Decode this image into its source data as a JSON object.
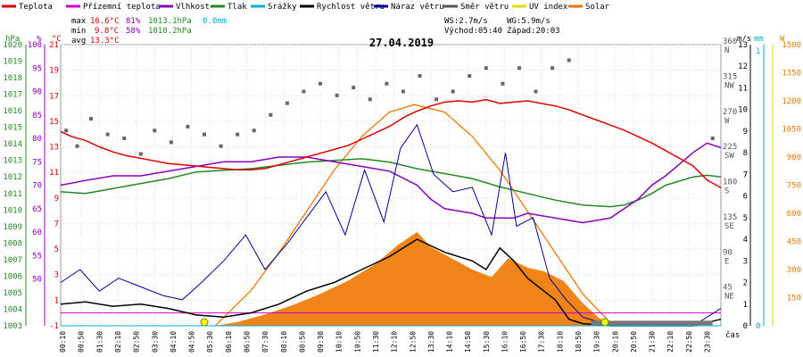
{
  "chart_data": {
    "type": "line",
    "title": "27.04.2019",
    "legend": {
      "placement": "top",
      "items": [
        {
          "name": "Teplota",
          "color": "#dd0000"
        },
        {
          "name": "Přízemní teplota",
          "color": "#cc00cc"
        },
        {
          "name": "Vlhkost",
          "color": "#8800bb"
        },
        {
          "name": "Tlak",
          "color": "#228822"
        },
        {
          "name": "Srážky",
          "color": "#00aadd"
        },
        {
          "name": "Rychlost větru",
          "color": "#000000"
        },
        {
          "name": "Náraz větru",
          "color": "#000099"
        },
        {
          "name": "Směr větru",
          "color": "#555555"
        },
        {
          "name": "UV index",
          "color": "#dddd00"
        },
        {
          "name": "Solar",
          "color": "#ee7700"
        }
      ]
    },
    "stats": {
      "max_label": "max",
      "min_label": "min",
      "avg_label": "avg",
      "max_temp": "16.6°C",
      "max_hum": "81%",
      "max_pres": "1013.1hPa",
      "max_rain": "0.0mm",
      "min_temp": "9.8°C",
      "min_hum": "58%",
      "min_pres": "1010.2hPa",
      "avg_temp": "13.3°C",
      "ws": "WS:2.7m/s",
      "wg": "WG:5.9m/s",
      "sunrise": "Východ:05:40",
      "sunset": "Západ:20:03"
    },
    "axes": {
      "pressure": {
        "unit": "hPa",
        "range": [
          1003,
          1020
        ],
        "ticks": [
          1003,
          1004,
          1005,
          1006,
          1007,
          1008,
          1009,
          1010,
          1011,
          1012,
          1013,
          1014,
          1015,
          1016,
          1017,
          1018,
          1019,
          1020
        ]
      },
      "humidity": {
        "unit": "%",
        "range": [
          40,
          100
        ],
        "ticks": [
          50,
          55,
          60,
          65,
          70,
          75,
          80,
          85,
          90,
          95,
          100
        ]
      },
      "temperature": {
        "unit": "°C",
        "range": [
          -1,
          21
        ],
        "ticks": [
          -1,
          1,
          3,
          5,
          7,
          9,
          11,
          13,
          15,
          17,
          19,
          21
        ]
      },
      "direction": {
        "range": [
          0,
          360
        ],
        "ticks": [
          "45 NE",
          "90 E",
          "135 SE",
          "180 S",
          "225 SW",
          "270 W",
          "315 NW",
          "360 N"
        ]
      },
      "wind": {
        "unit": "m/s",
        "range": [
          0,
          13
        ],
        "ticks": [
          0,
          1,
          2,
          3,
          4,
          5,
          6,
          7,
          8,
          9,
          10,
          11,
          12,
          13
        ]
      },
      "rain": {
        "unit": "mm",
        "range": [
          0,
          1
        ],
        "ticks": [
          0,
          1
        ]
      },
      "solar": {
        "unit": "W",
        "range": [
          0,
          1500
        ],
        "ticks": [
          150,
          300,
          450,
          600,
          750,
          900,
          1050,
          1200,
          1350,
          1500
        ]
      },
      "x_label": "čas",
      "time_ticks": [
        "00:10",
        "00:50",
        "01:30",
        "02:10",
        "02:50",
        "03:30",
        "04:10",
        "04:50",
        "05:30",
        "06:10",
        "06:50",
        "07:30",
        "08:10",
        "08:50",
        "09:30",
        "10:10",
        "10:50",
        "11:30",
        "12:10",
        "12:50",
        "13:30",
        "14:10",
        "14:50",
        "15:30",
        "16:10",
        "16:50",
        "17:30",
        "18:10",
        "18:50",
        "19:30",
        "20:10",
        "20:50",
        "21:30",
        "22:10",
        "22:50",
        "23:30"
      ],
      "x_range_hours": [
        0.1,
        24
      ]
    },
    "series": {
      "temperature": {
        "x": [
          0.1,
          0.5,
          1,
          1.5,
          2,
          2.5,
          3,
          3.5,
          4,
          4.5,
          5,
          5.5,
          6,
          6.5,
          7,
          7.5,
          8,
          8.5,
          9,
          9.5,
          10,
          10.5,
          11,
          11.5,
          12,
          12.3,
          12.6,
          13,
          13.5,
          14,
          14.5,
          15,
          15.5,
          16,
          16.5,
          17,
          17.5,
          18,
          18.5,
          19,
          19.5,
          20,
          20.5,
          21,
          21.5,
          22,
          22.5,
          23,
          23.5,
          24
        ],
        "values": [
          14.2,
          13.8,
          13.5,
          13.0,
          12.6,
          12.3,
          12.1,
          11.9,
          11.7,
          11.6,
          11.5,
          11.4,
          11.3,
          11.2,
          11.2,
          11.3,
          11.6,
          11.9,
          12.2,
          12.5,
          12.8,
          13.1,
          13.6,
          14.1,
          14.6,
          15.0,
          15.4,
          15.8,
          16.2,
          16.5,
          16.6,
          16.5,
          16.7,
          16.4,
          16.5,
          16.6,
          16.4,
          16.2,
          15.9,
          15.5,
          15.1,
          14.7,
          14.3,
          13.8,
          13.3,
          12.7,
          12.1,
          11.5,
          10.4,
          9.8
        ]
      },
      "humidity": {
        "x": [
          0.1,
          1,
          2,
          3,
          4,
          5,
          6,
          7,
          8,
          9,
          10,
          11,
          12,
          13,
          13.5,
          14,
          15,
          15.5,
          16,
          16.5,
          17,
          18,
          19,
          20,
          20.5,
          21,
          21.5,
          22,
          23,
          23.5,
          24
        ],
        "values": [
          70,
          71,
          72,
          72,
          73,
          74,
          75,
          75,
          76,
          76,
          75,
          74,
          73,
          70,
          67,
          65,
          64,
          63,
          63,
          63,
          64,
          63,
          62,
          63,
          65,
          67,
          70,
          72,
          77,
          79,
          78
        ]
      },
      "pressure": {
        "x": [
          0.1,
          1,
          2,
          3,
          4,
          5,
          6,
          7,
          8,
          9,
          10,
          11,
          12,
          13,
          14,
          15,
          16,
          17,
          18,
          19,
          20,
          20.5,
          21,
          21.5,
          22,
          23,
          23.5,
          24
        ],
        "values": [
          1011.1,
          1011.0,
          1011.3,
          1011.6,
          1011.9,
          1012.3,
          1012.4,
          1012.5,
          1012.7,
          1012.9,
          1013.0,
          1013.1,
          1012.9,
          1012.5,
          1012.2,
          1011.9,
          1011.4,
          1011.0,
          1010.6,
          1010.3,
          1010.2,
          1010.3,
          1010.6,
          1011.0,
          1011.5,
          1012.0,
          1012.1,
          1012.0
        ]
      },
      "wind_direction": {
        "x": [
          0.3,
          0.7,
          1.2,
          1.8,
          2.4,
          3.0,
          3.5,
          4.1,
          4.7,
          5.3,
          5.9,
          6.5,
          7.1,
          7.7,
          8.3,
          8.9,
          9.5,
          10.1,
          10.7,
          11.3,
          11.9,
          12.5,
          13.1,
          13.7,
          14.3,
          14.9,
          15.5,
          16.1,
          16.7,
          17.3,
          17.9,
          18.5,
          23.7
        ],
        "values": [
          250,
          230,
          265,
          245,
          240,
          220,
          250,
          235,
          255,
          245,
          230,
          245,
          250,
          270,
          285,
          300,
          310,
          295,
          305,
          290,
          310,
          300,
          320,
          290,
          300,
          320,
          330,
          310,
          330,
          300,
          330,
          340,
          240
        ]
      },
      "wind_speed": {
        "x": [
          0.1,
          1,
          2,
          3,
          4,
          5,
          6,
          7,
          8,
          9,
          10,
          11,
          12,
          13,
          14,
          15,
          15.5,
          16,
          16.5,
          17,
          18,
          18.5,
          19,
          20,
          21,
          22,
          23,
          24
        ],
        "values": [
          1.0,
          1.1,
          0.9,
          1.0,
          0.8,
          0.5,
          0.4,
          0.6,
          1.0,
          1.6,
          2.0,
          2.6,
          3.2,
          4.0,
          3.4,
          3.0,
          2.6,
          3.6,
          3.0,
          2.2,
          1.2,
          0.3,
          0.1,
          0,
          0,
          0,
          0,
          0.3
        ]
      },
      "wind_gust": {
        "x": [
          0.1,
          0.8,
          1.5,
          2.2,
          3,
          3.8,
          4.5,
          5.2,
          6,
          6.8,
          7.5,
          8.3,
          9,
          9.7,
          10.4,
          11.1,
          11.8,
          12.4,
          13,
          13.6,
          14.3,
          15,
          15.7,
          16.2,
          16.6,
          17.2,
          17.8,
          18.4,
          19,
          20,
          21,
          22,
          23,
          24
        ],
        "values": [
          2.0,
          2.6,
          1.6,
          2.2,
          1.8,
          1.4,
          1.2,
          2.0,
          3.0,
          4.2,
          2.6,
          3.8,
          5.0,
          6.2,
          4.2,
          7.2,
          4.8,
          8.2,
          9.3,
          7.0,
          6.2,
          6.4,
          4.2,
          8.0,
          4.6,
          5.0,
          2.2,
          1.2,
          0.4,
          0,
          0,
          0,
          0,
          0.8
        ]
      },
      "solar": {
        "x": [
          0.1,
          5.7,
          6.5,
          7.5,
          8.5,
          9.5,
          10.5,
          11.5,
          12.3,
          13,
          13.5,
          14,
          15,
          15.7,
          16.3,
          17,
          17.6,
          18.3,
          19,
          19.6,
          20.2,
          24
        ],
        "values": [
          0,
          0,
          20,
          60,
          110,
          170,
          240,
          330,
          430,
          500,
          420,
          380,
          300,
          260,
          360,
          310,
          290,
          240,
          120,
          40,
          0,
          0
        ]
      },
      "solar_max": {
        "x": [
          5.7,
          7,
          8,
          9,
          10,
          11,
          12,
          12.9,
          14,
          15,
          16,
          17,
          18,
          19,
          20.1
        ],
        "values": [
          0,
          190,
          390,
          610,
          830,
          1010,
          1140,
          1180,
          1140,
          1010,
          830,
          610,
          390,
          170,
          0
        ]
      },
      "uv_index": {
        "x": [
          5.3,
          19.8
        ],
        "values": [
          0,
          0
        ]
      },
      "rain": {
        "x": [
          0.1,
          24
        ],
        "values": [
          0,
          0
        ]
      }
    }
  }
}
